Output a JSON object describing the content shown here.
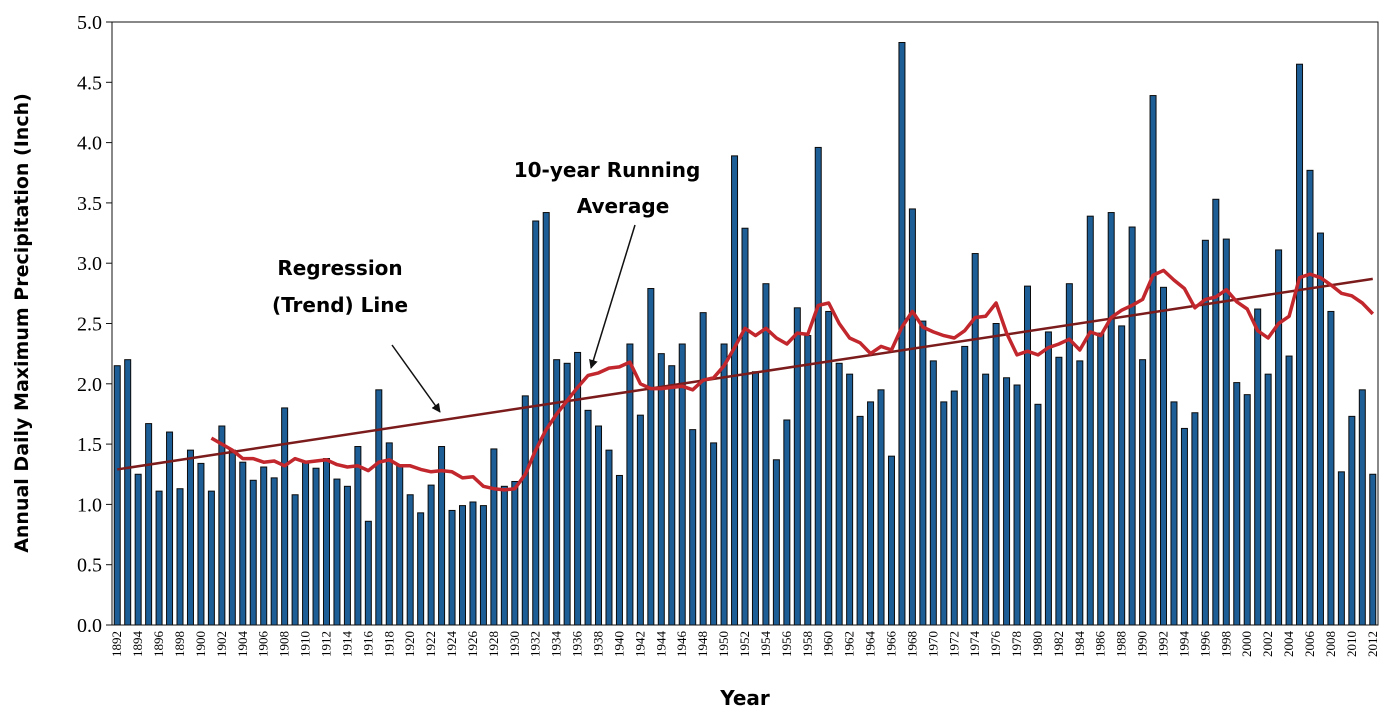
{
  "chart_data": {
    "type": "bar",
    "y_label": "Annual Daily Maximum Precipitation (Inch)",
    "x_label": "Year",
    "categories": [
      "1892",
      null,
      "1894",
      null,
      "1896",
      null,
      "1898",
      null,
      "1900",
      null,
      "1902",
      null,
      "1904",
      null,
      "1906",
      null,
      "1908",
      null,
      "1910",
      null,
      "1912",
      null,
      "1914",
      null,
      "1916",
      null,
      "1918",
      null,
      "1920",
      null,
      "1922",
      null,
      "1924",
      null,
      "1926",
      null,
      "1928",
      null,
      "1930",
      null,
      "1932",
      null,
      "1934",
      null,
      "1936",
      null,
      "1938",
      null,
      "1940",
      null,
      "1942",
      null,
      "1944",
      null,
      "1946",
      null,
      "1948",
      null,
      "1950",
      null,
      "1952",
      null,
      "1954",
      null,
      "1956",
      null,
      "1958",
      null,
      "1960",
      null,
      "1962",
      null,
      "1964",
      null,
      "1966",
      null,
      "1968",
      null,
      "1970",
      null,
      "1972",
      null,
      "1974",
      null,
      "1976",
      null,
      "1978",
      null,
      "1980",
      null,
      "1982",
      null,
      "1984",
      null,
      "1986",
      null,
      "1988",
      null,
      "1990",
      null,
      "1992",
      null,
      "1994",
      null,
      "1996",
      null,
      "1998",
      null,
      "2000",
      null,
      "2002",
      null,
      "2004",
      null,
      "2006",
      null,
      "2008",
      null,
      "2010",
      null,
      "2012"
    ],
    "values": [
      2.15,
      2.2,
      1.25,
      1.67,
      1.11,
      1.6,
      1.13,
      1.45,
      1.34,
      1.11,
      1.65,
      1.45,
      1.35,
      1.2,
      1.31,
      1.22,
      1.8,
      1.08,
      1.35,
      1.3,
      1.38,
      1.21,
      1.15,
      1.48,
      0.86,
      1.95,
      1.51,
      1.33,
      1.08,
      0.93,
      1.16,
      1.48,
      0.95,
      0.99,
      1.02,
      0.99,
      1.46,
      1.15,
      1.19,
      1.9,
      3.35,
      3.42,
      2.2,
      2.17,
      2.26,
      1.78,
      1.65,
      1.45,
      1.24,
      2.33,
      1.74,
      2.79,
      2.25,
      2.15,
      2.33,
      1.62,
      2.59,
      1.51,
      2.33,
      3.89,
      3.29,
      2.1,
      2.83,
      1.37,
      1.7,
      2.63,
      2.4,
      3.96,
      2.6,
      2.17,
      2.08,
      1.73,
      1.85,
      1.95,
      1.4,
      4.83,
      3.45,
      2.52,
      2.19,
      1.85,
      1.94,
      2.31,
      3.08,
      2.08,
      2.5,
      2.05,
      1.99,
      2.81,
      1.83,
      2.43,
      2.22,
      2.83,
      2.19,
      3.39,
      2.42,
      3.42,
      2.48,
      3.3,
      2.2,
      4.39,
      2.8,
      1.85,
      1.63,
      1.76,
      3.19,
      3.53,
      3.2,
      2.01,
      1.91,
      2.62,
      2.08,
      3.11,
      2.23,
      4.65,
      3.77,
      3.25,
      2.6,
      1.27,
      1.73,
      1.95,
      1.25
    ],
    "color": "#1d5e96",
    "running_average": {
      "label": [
        "10-year Running",
        "Average"
      ],
      "color": "#c1272d",
      "values": [
        null,
        null,
        null,
        null,
        null,
        null,
        null,
        null,
        null,
        1.55,
        1.5,
        1.45,
        1.38,
        1.38,
        1.35,
        1.36,
        1.32,
        1.38,
        1.35,
        1.36,
        1.37,
        1.33,
        1.31,
        1.32,
        1.28,
        1.35,
        1.37,
        1.32,
        1.32,
        1.29,
        1.27,
        1.28,
        1.27,
        1.22,
        1.23,
        1.15,
        1.13,
        1.12,
        1.13,
        1.25,
        1.45,
        1.62,
        1.75,
        1.86,
        1.97,
        2.07,
        2.09,
        2.13,
        2.14,
        2.18,
        2.0,
        1.96,
        1.96,
        1.97,
        1.98,
        1.95,
        2.03,
        2.05,
        2.15,
        2.3,
        2.46,
        2.4,
        2.46,
        2.38,
        2.33,
        2.42,
        2.41,
        2.65,
        2.67,
        2.5,
        2.38,
        2.34,
        2.25,
        2.31,
        2.28,
        2.47,
        2.6,
        2.47,
        2.43,
        2.4,
        2.38,
        2.44,
        2.55,
        2.56,
        2.67,
        2.42,
        2.24,
        2.27,
        2.24,
        2.3,
        2.33,
        2.37,
        2.28,
        2.43,
        2.4,
        2.55,
        2.61,
        2.65,
        2.7,
        2.9,
        2.94,
        2.86,
        2.79,
        2.63,
        2.7,
        2.72,
        2.78,
        2.68,
        2.62,
        2.44,
        2.38,
        2.5,
        2.56,
        2.88,
        2.91,
        2.88,
        2.82,
        2.75,
        2.73,
        2.67,
        2.58
      ]
    },
    "regression": {
      "label": [
        "Regression",
        "(Trend) Line"
      ],
      "color": "#7b1b1b",
      "x": [
        1892,
        2012
      ],
      "values": [
        1.29,
        2.87
      ]
    },
    "ylim": [
      0,
      5
    ],
    "yticks": [
      {
        "value": 0,
        "label": "0.0"
      },
      {
        "value": 0.5,
        "label": "0.5"
      },
      {
        "value": 1,
        "label": "1.0"
      },
      {
        "value": 1.5,
        "label": "1.5"
      },
      {
        "value": 2,
        "label": "2.0"
      },
      {
        "value": 2.5,
        "label": "2.5"
      },
      {
        "value": 3,
        "label": "3.0"
      },
      {
        "value": 3.5,
        "label": "3.5"
      },
      {
        "value": 4,
        "label": "4.0"
      },
      {
        "value": 4.5,
        "label": "4.5"
      },
      {
        "value": 5,
        "label": "5.0"
      }
    ]
  }
}
